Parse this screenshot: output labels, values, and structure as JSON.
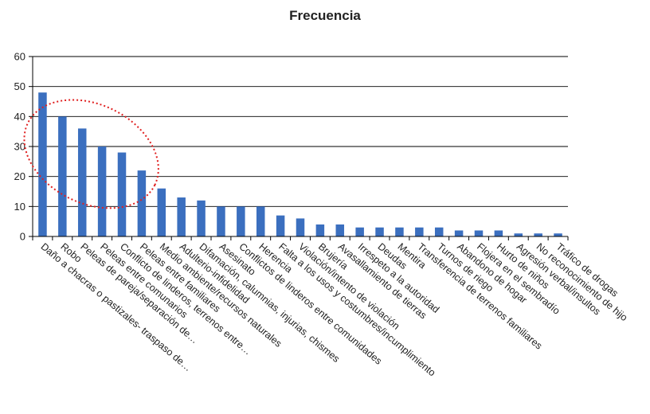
{
  "chart_data": {
    "type": "bar",
    "title": "Frecuencia",
    "xlabel": "",
    "ylabel": "",
    "ylim": [
      0,
      60
    ],
    "yticks": [
      0,
      10,
      20,
      30,
      40,
      50,
      60
    ],
    "grid": true,
    "legend": "none",
    "bar_color": "#3b6fbf",
    "highlight_color": "#e02020",
    "highlight": {
      "shape": "dotted-ellipse",
      "from_index": 0,
      "to_index": 5
    },
    "categories": [
      "Daño a chacras o pastizales- traspaso de…",
      "Robo",
      "Peleas de pareja/separación de…",
      "Peleas entre comunarios",
      "Conflicto de linderos, terrenos entre…",
      "Peleas entre familiares",
      "Medio ambiente/recursos naturales",
      "Adulterio-infidelidad",
      "Difamación, calumnias, injurias, chismes",
      "Asesinato",
      "Conflictos de linderos entre comunidades",
      "Herencia",
      "Falta a los usos y costumbres/incumplimiento",
      "Violación/intento de violación",
      "Brujería",
      "Avasallamiento de tierras",
      "Irrespeto a la autoridad",
      "Deudas",
      "Mentira",
      "Transferencia de terrenos familiares",
      "Turnos de riego",
      "Abandono de hogar",
      "Flojera en el sembradío",
      "Hurto de niños",
      "Agresión verbal/insultos",
      "No reconocimiento de hijo",
      "Tráfico de drogas"
    ],
    "values": [
      48,
      40,
      36,
      30,
      28,
      22,
      16,
      13,
      12,
      10,
      10,
      10,
      7,
      6,
      4,
      4,
      3,
      3,
      3,
      3,
      3,
      2,
      2,
      2,
      1,
      1,
      1
    ]
  }
}
